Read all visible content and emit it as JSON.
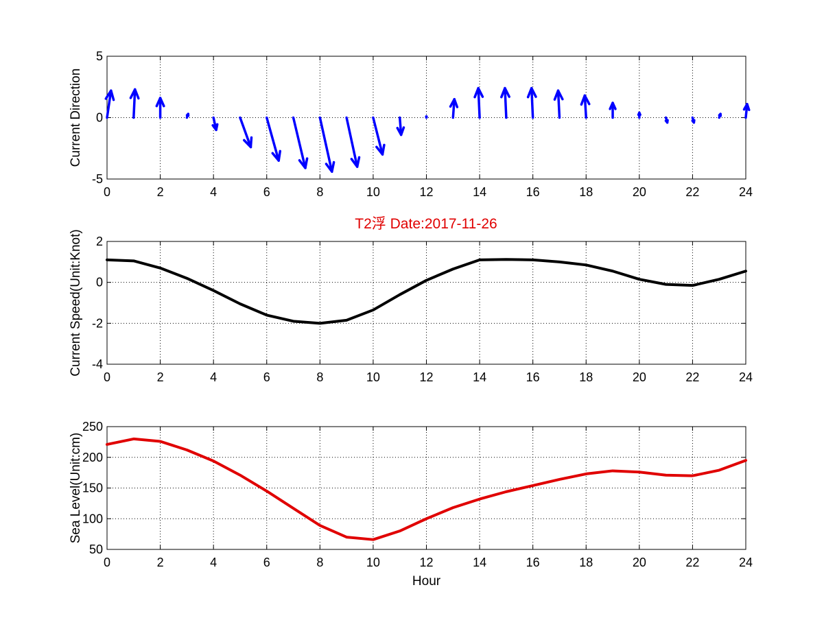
{
  "title": "T2浮   Date:2017-11-26",
  "title_color": "#e00000",
  "chart_data": [
    {
      "type": "quiver",
      "ylabel": "Current Direction",
      "xlim": [
        0,
        24
      ],
      "ylim": [
        -5,
        5
      ],
      "xticks": [
        0,
        2,
        4,
        6,
        8,
        10,
        12,
        14,
        16,
        18,
        20,
        22,
        24
      ],
      "yticks": [
        -5,
        0,
        5
      ],
      "grid": true,
      "color": "#0000ff",
      "x": [
        0,
        1,
        2,
        3,
        4,
        5,
        6,
        7,
        8,
        9,
        10,
        11,
        12,
        13,
        14,
        15,
        16,
        17,
        18,
        19,
        20,
        21,
        22,
        23,
        24
      ],
      "u": [
        0.15,
        0.05,
        0.0,
        0.05,
        0.1,
        0.4,
        0.45,
        0.45,
        0.45,
        0.4,
        0.35,
        0.05,
        0.0,
        0.05,
        -0.05,
        -0.05,
        -0.05,
        -0.05,
        -0.05,
        0.0,
        0.0,
        0.05,
        0.05,
        0.05,
        0.05
      ],
      "v": [
        2.2,
        2.3,
        1.6,
        0.3,
        -1.0,
        -2.4,
        -3.5,
        -4.1,
        -4.4,
        -4.0,
        -3.0,
        -1.4,
        0.1,
        1.5,
        2.4,
        2.4,
        2.4,
        2.2,
        1.8,
        1.2,
        0.4,
        -0.4,
        -0.4,
        0.3,
        1.1
      ]
    },
    {
      "type": "line",
      "ylabel": "Current Speed(Unit:Knot)",
      "xlim": [
        0,
        24
      ],
      "ylim": [
        -4,
        2
      ],
      "xticks": [
        0,
        2,
        4,
        6,
        8,
        10,
        12,
        14,
        16,
        18,
        20,
        22,
        24
      ],
      "yticks": [
        -4,
        -2,
        0,
        2
      ],
      "grid": true,
      "series": [
        {
          "color": "#000000",
          "x": [
            0,
            1,
            2,
            3,
            4,
            5,
            6,
            7,
            8,
            9,
            10,
            11,
            12,
            13,
            14,
            15,
            16,
            17,
            18,
            19,
            20,
            21,
            22,
            23,
            24
          ],
          "values": [
            1.1,
            1.05,
            0.7,
            0.2,
            -0.4,
            -1.05,
            -1.6,
            -1.9,
            -2.0,
            -1.85,
            -1.35,
            -0.6,
            0.1,
            0.65,
            1.1,
            1.12,
            1.1,
            1.0,
            0.85,
            0.55,
            0.15,
            -0.1,
            -0.15,
            0.15,
            0.55
          ]
        }
      ]
    },
    {
      "type": "line",
      "ylabel": "Sea Level(Unit:cm)",
      "xlabel": "Hour",
      "xlim": [
        0,
        24
      ],
      "ylim": [
        50,
        250
      ],
      "xticks": [
        0,
        2,
        4,
        6,
        8,
        10,
        12,
        14,
        16,
        18,
        20,
        22,
        24
      ],
      "yticks": [
        50,
        100,
        150,
        200,
        250
      ],
      "grid": true,
      "series": [
        {
          "color": "#e00000",
          "x": [
            0,
            1,
            2,
            3,
            4,
            5,
            6,
            7,
            8,
            9,
            10,
            11,
            12,
            13,
            14,
            15,
            16,
            17,
            18,
            19,
            20,
            21,
            22,
            23,
            24
          ],
          "values": [
            221,
            230,
            226,
            212,
            194,
            171,
            145,
            117,
            89,
            70,
            66,
            80,
            100,
            118,
            132,
            144,
            154,
            164,
            173,
            178,
            176,
            171,
            170,
            179,
            195
          ]
        }
      ]
    }
  ]
}
